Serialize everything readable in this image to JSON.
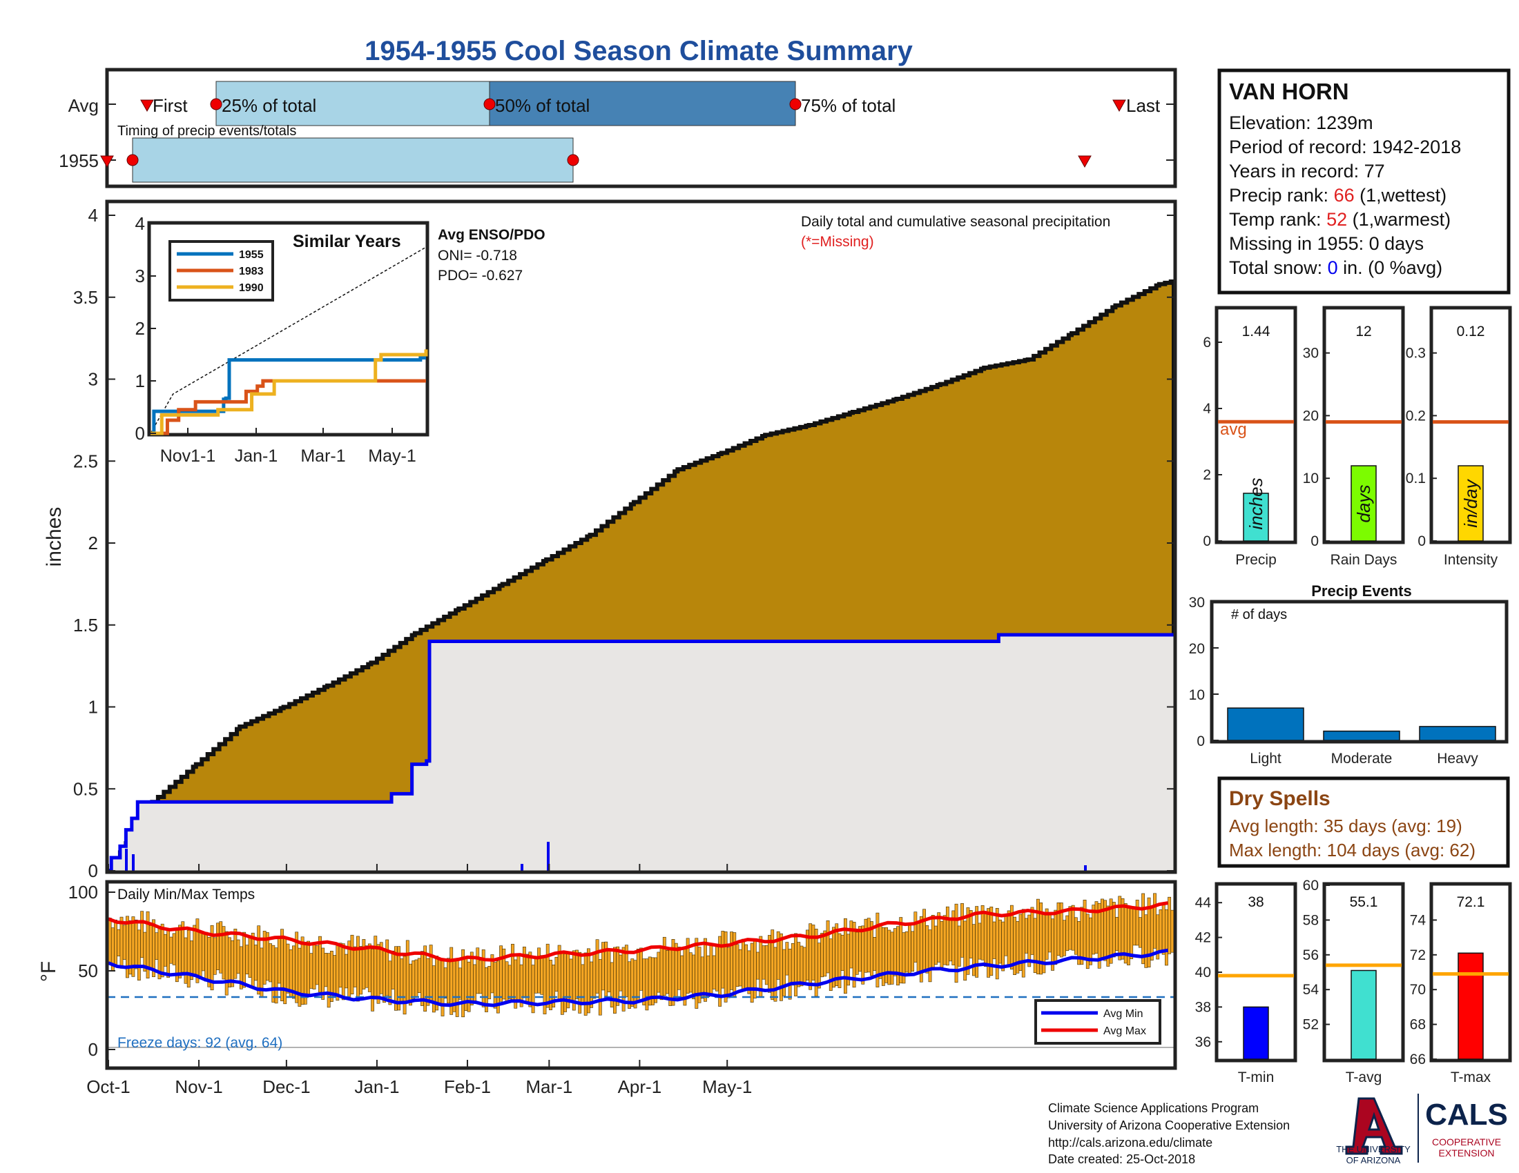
{
  "title": "1954-1955 Cool Season Climate Summary",
  "timing": {
    "row_avg": "Avg",
    "row_year": "1955",
    "label_first": "First",
    "label_25": "25% of total",
    "label_50": "50% of total",
    "label_75": "75% of total",
    "label_last": "Last",
    "caption": "Timing of precip events/totals"
  },
  "station": {
    "name": "VAN HORN",
    "elevation": "Elevation: 1239m",
    "period": "Period of record: 1942-2018",
    "years": "Years in record: 77",
    "precip_rank_label": "Precip rank: ",
    "precip_rank_value": "66",
    "precip_rank_note": " (1,wettest)",
    "temp_rank_label": "Temp rank: ",
    "temp_rank_value": "52",
    "temp_rank_note": " (1,warmest)",
    "missing": "Missing in 1955: 0 days",
    "snow_label": "Total snow: ",
    "snow_value": "0",
    "snow_note": " in. (0 %avg)"
  },
  "main": {
    "ylabel": "inches",
    "note1": "Daily total and cumulative seasonal precipitation",
    "note2": "(*=Missing)",
    "enso_title": "Avg ENSO/PDO",
    "oni": "ONI= -0.718",
    "pdo": "PDO= -0.627"
  },
  "inset": {
    "title": "Similar Years",
    "legend": [
      "1955",
      "1983",
      "1990"
    ],
    "colors": [
      "#0072BD",
      "#D95319",
      "#EDB120"
    ],
    "xticks": [
      "Nov1-1",
      "Jan-1",
      "Mar-1",
      "May-1"
    ],
    "yticks": [
      "0",
      "1",
      "2",
      "3",
      "4"
    ]
  },
  "temps": {
    "title": "Daily Min/Max Temps",
    "ylabel": "°F",
    "freeze": "Freeze days: 92 (avg. 64)",
    "legend_min": "Avg Min",
    "legend_max": "Avg Max",
    "xticks": [
      "Oct-1",
      "Nov-1",
      "Dec-1",
      "Jan-1",
      "Feb-1",
      "Mar-1",
      "Apr-1",
      "May-1"
    ],
    "yticks": [
      "0",
      "50",
      "100"
    ]
  },
  "dry_spells": {
    "title": "Dry Spells",
    "avg": "Avg length: 35 days (avg: 19)",
    "max": "Max length: 104 days (avg: 62)"
  },
  "events": {
    "title": "Precip Events",
    "sub": "# of days"
  },
  "footer": {
    "line1": "Climate Science Applications Program",
    "line2": "University of Arizona Cooperative Extension",
    "line3": "http://cals.arizona.edu/climate",
    "line4": " Date created: 25-Oct-2018",
    "ua1": "THE UNIVERSITY",
    "ua2": "OF ARIZONA",
    "cals": "CALS",
    "cals1": "COOPERATIVE",
    "cals2": "EXTENSION"
  },
  "colors": {
    "title": "#1F4E9C",
    "cumulative_avg": "#B8860B",
    "season_fill": "#E8E6E4",
    "season_line": "#0000EE",
    "temp_bar": "#F5A623",
    "avg_max": "#EE0000",
    "avg_min": "#0000EE",
    "freeze": "#1F6FC0",
    "light_blue": "#A8D4E6",
    "mid_blue": "#4682B4",
    "rank": "#E02020",
    "brown": "#8B4513"
  },
  "chart_data": [
    {
      "type": "area",
      "name": "cumulative precipitation",
      "xlabel": "",
      "ylabel": "inches",
      "ylim": [
        0,
        4
      ],
      "yticks": [
        0,
        0.5,
        1,
        1.5,
        2,
        2.5,
        3,
        3.5,
        4
      ],
      "xticks": [
        "Oct-1",
        "Nov-1",
        "Dec-1",
        "Jan-1",
        "Feb-1",
        "Mar-1",
        "Apr-1",
        "May-1"
      ],
      "x_day": [
        0,
        15,
        30,
        45,
        60,
        75,
        90,
        105,
        120,
        135,
        150,
        165,
        180,
        195,
        210,
        225,
        240,
        255,
        270,
        285,
        300,
        315,
        330,
        345,
        360,
        365
      ],
      "avg_cumulative": [
        0,
        0.42,
        0.65,
        0.88,
        1.0,
        1.13,
        1.27,
        1.45,
        1.6,
        1.75,
        1.9,
        2.05,
        2.25,
        2.45,
        2.55,
        2.66,
        2.72,
        2.8,
        2.88,
        2.97,
        3.07,
        3.12,
        3.28,
        3.45,
        3.58,
        3.6
      ],
      "season_1955": {
        "x_day": [
          0,
          1,
          4,
          6,
          8,
          10,
          14,
          92,
          97,
          103,
          104,
          109,
          110,
          205,
          206,
          300,
          305,
          365
        ],
        "y": [
          0,
          0.08,
          0.15,
          0.25,
          0.32,
          0.42,
          0.42,
          0.42,
          0.47,
          0.47,
          0.65,
          0.67,
          1.4,
          1.4,
          1.4,
          1.4,
          1.44,
          1.44
        ]
      }
    },
    {
      "type": "line",
      "name": "Similar Years",
      "xticks": [
        "Nov1-1",
        "Jan-1",
        "Mar-1",
        "May-1"
      ],
      "ylim": [
        0,
        4
      ],
      "series": [
        {
          "name": "1955",
          "x_day": [
            0,
            3,
            60,
            65,
            67,
            70,
            180,
            200,
            240,
            245
          ],
          "y": [
            0,
            0.42,
            0.42,
            0.65,
            0.67,
            1.4,
            1.4,
            1.4,
            1.44,
            1.44
          ]
        },
        {
          "name": "1983",
          "x_day": [
            0,
            15,
            25,
            40,
            80,
            85,
            95,
            100,
            120,
            245
          ],
          "y": [
            0,
            0.25,
            0.45,
            0.6,
            0.6,
            0.8,
            0.9,
            1.0,
            1.0,
            1.0
          ]
        },
        {
          "name": "1990",
          "x_day": [
            0,
            10,
            50,
            60,
            85,
            90,
            100,
            110,
            140,
            200,
            205,
            240,
            245
          ],
          "y": [
            0,
            0.35,
            0.35,
            0.45,
            0.45,
            0.75,
            0.75,
            1.0,
            1.0,
            1.4,
            1.5,
            1.5,
            1.6
          ]
        }
      ]
    },
    {
      "type": "bar",
      "name": "Precip / Rain Days / Intensity",
      "categories": [
        "Precip",
        "Rain Days",
        "Intensity"
      ],
      "axis_labels": [
        "inches",
        "days",
        "in/day"
      ],
      "values": [
        1.44,
        12,
        0.12
      ],
      "averages": [
        3.6,
        19,
        0.19
      ],
      "ylim": [
        [
          0,
          7
        ],
        [
          0,
          37
        ],
        [
          0,
          0.37
        ]
      ],
      "yticks": [
        [
          0,
          2,
          4,
          6
        ],
        [
          0,
          10,
          20,
          30
        ],
        [
          0,
          0.1,
          0.2,
          0.3
        ]
      ],
      "value_labels": [
        "1.44",
        "12",
        "0.12"
      ],
      "colors": [
        "#40E0D0",
        "#7CFC00",
        "#FFD700"
      ],
      "avg_label": "avg"
    },
    {
      "type": "bar",
      "name": "Precip Events",
      "categories": [
        "Light",
        "Moderate",
        "Heavy"
      ],
      "values": [
        7,
        2,
        3
      ],
      "ylim": [
        0,
        30
      ],
      "yticks": [
        0,
        10,
        20,
        30
      ]
    },
    {
      "type": "bar",
      "name": "Daily Min/Max Temps",
      "ylabel": "°F",
      "ylim": [
        0,
        100
      ],
      "series": [
        {
          "name": "Avg Max",
          "x_day": [
            0,
            30,
            60,
            90,
            120,
            150,
            180,
            210,
            240,
            270,
            300,
            330,
            365
          ],
          "y": [
            83,
            75,
            70,
            64,
            57,
            60,
            63,
            67,
            72,
            80,
            86,
            88,
            92
          ]
        },
        {
          "name": "Avg Min",
          "x_day": [
            0,
            30,
            60,
            90,
            120,
            150,
            180,
            210,
            240,
            270,
            300,
            330,
            365
          ],
          "y": [
            55,
            46,
            37,
            32,
            29,
            30,
            31,
            35,
            42,
            48,
            53,
            57,
            62
          ]
        }
      ],
      "freeze_line": 32
    },
    {
      "type": "bar",
      "name": "T-min / T-avg / T-max",
      "categories": [
        "T-min",
        "T-avg",
        "T-max"
      ],
      "values": [
        38,
        55.1,
        72.1
      ],
      "value_labels": [
        "38",
        "55.1",
        "72.1"
      ],
      "averages": [
        39.8,
        55.4,
        70.9
      ],
      "ylim": [
        [
          35,
          45
        ],
        [
          50,
          60
        ],
        [
          66,
          76
        ]
      ],
      "yticks": [
        [
          36,
          38,
          40,
          42,
          44
        ],
        [
          52,
          54,
          56,
          58,
          60
        ],
        [
          66,
          68,
          70,
          72,
          74
        ]
      ],
      "colors": [
        "#0000FF",
        "#40E0D0",
        "#FF0000"
      ]
    }
  ]
}
